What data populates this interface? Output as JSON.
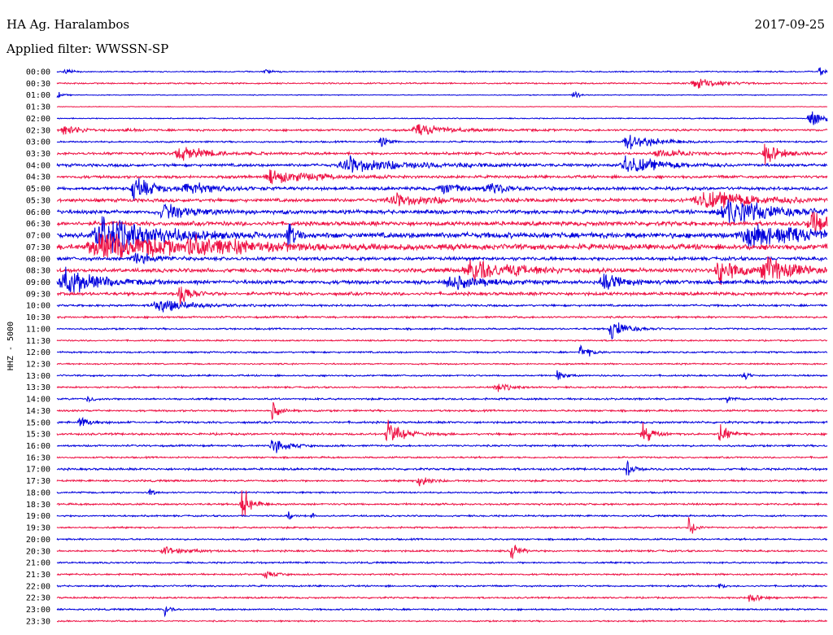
{
  "header": {
    "station": "HA Ag. Haralambos",
    "date": "2017-09-25",
    "filter_text": "Applied filter: WWSSN-SP"
  },
  "chart_data": {
    "type": "line",
    "ylabel": "HHZ - 5000",
    "colors": [
      "#0000dd",
      "#ee1144"
    ],
    "row_labels": [
      "00:00",
      "00:30",
      "01:00",
      "01:30",
      "02:00",
      "02:30",
      "03:00",
      "03:30",
      "04:00",
      "04:30",
      "05:00",
      "05:30",
      "06:00",
      "06:30",
      "07:00",
      "07:30",
      "08:00",
      "08:30",
      "09:00",
      "09:30",
      "10:00",
      "10:30",
      "11:00",
      "11:30",
      "12:00",
      "12:30",
      "13:00",
      "13:30",
      "14:00",
      "14:30",
      "15:00",
      "15:30",
      "16:00",
      "16:30",
      "17:00",
      "17:30",
      "18:00",
      "18:30",
      "19:00",
      "19:30",
      "20:00",
      "20:30",
      "21:00",
      "21:30",
      "22:00",
      "22:30",
      "23:00",
      "23:30"
    ],
    "grid": false,
    "noise_level": [
      0.6,
      0.7,
      0.4,
      0.3,
      0.5,
      1.0,
      0.8,
      1.2,
      1.4,
      1.3,
      1.5,
      1.6,
      1.8,
      2.0,
      2.6,
      2.6,
      1.6,
      1.8,
      1.8,
      1.5,
      1.0,
      0.9,
      0.8,
      0.7,
      0.8,
      0.7,
      0.8,
      0.8,
      0.9,
      0.9,
      1.0,
      1.0,
      0.9,
      0.8,
      1.0,
      0.9,
      0.8,
      0.9,
      0.8,
      0.8,
      0.8,
      0.9,
      0.8,
      0.8,
      0.8,
      0.8,
      0.8,
      0.7
    ],
    "events": [
      {
        "row": 0,
        "x": 0.01,
        "amp": 4,
        "width": 0.006
      },
      {
        "row": 0,
        "x": 0.27,
        "amp": 3,
        "width": 0.006
      },
      {
        "row": 0,
        "x": 0.99,
        "amp": 5,
        "width": 0.008
      },
      {
        "row": 1,
        "x": 0.83,
        "amp": 5,
        "width": 0.025
      },
      {
        "row": 2,
        "x": 0.0,
        "amp": 5,
        "width": 0.004
      },
      {
        "row": 2,
        "x": 0.67,
        "amp": 5,
        "width": 0.005
      },
      {
        "row": 4,
        "x": 0.98,
        "amp": 8,
        "width": 0.02
      },
      {
        "row": 5,
        "x": 0.01,
        "amp": 7,
        "width": 0.015
      },
      {
        "row": 5,
        "x": 0.09,
        "amp": 5,
        "width": 0.005
      },
      {
        "row": 5,
        "x": 0.47,
        "amp": 6,
        "width": 0.03
      },
      {
        "row": 6,
        "x": 0.42,
        "amp": 9,
        "width": 0.006
      },
      {
        "row": 6,
        "x": 0.74,
        "amp": 8,
        "width": 0.03
      },
      {
        "row": 7,
        "x": 0.16,
        "amp": 7,
        "width": 0.03
      },
      {
        "row": 7,
        "x": 0.78,
        "amp": 5,
        "width": 0.02
      },
      {
        "row": 7,
        "x": 0.92,
        "amp": 11,
        "width": 0.015
      },
      {
        "row": 8,
        "x": 0.38,
        "amp": 8,
        "width": 0.06
      },
      {
        "row": 8,
        "x": 0.74,
        "amp": 10,
        "width": 0.03
      },
      {
        "row": 9,
        "x": 0.28,
        "amp": 7,
        "width": 0.04
      },
      {
        "row": 10,
        "x": 0.1,
        "amp": 12,
        "width": 0.02
      },
      {
        "row": 10,
        "x": 0.17,
        "amp": 7,
        "width": 0.025
      },
      {
        "row": 10,
        "x": 0.5,
        "amp": 7,
        "width": 0.02
      },
      {
        "row": 10,
        "x": 0.56,
        "amp": 6,
        "width": 0.02
      },
      {
        "row": 11,
        "x": 0.44,
        "amp": 6,
        "width": 0.05
      },
      {
        "row": 11,
        "x": 0.84,
        "amp": 9,
        "width": 0.06
      },
      {
        "row": 12,
        "x": 0.14,
        "amp": 8,
        "width": 0.03
      },
      {
        "row": 12,
        "x": 0.87,
        "amp": 14,
        "width": 0.05
      },
      {
        "row": 13,
        "x": 0.98,
        "amp": 14,
        "width": 0.02
      },
      {
        "row": 14,
        "x": 0.06,
        "amp": 20,
        "width": 0.05
      },
      {
        "row": 14,
        "x": 0.3,
        "amp": 16,
        "width": 0.005
      },
      {
        "row": 14,
        "x": 0.9,
        "amp": 12,
        "width": 0.06
      },
      {
        "row": 15,
        "x": 0.06,
        "amp": 14,
        "width": 0.08
      },
      {
        "row": 15,
        "x": 0.18,
        "amp": 9,
        "width": 0.05
      },
      {
        "row": 16,
        "x": 0.1,
        "amp": 8,
        "width": 0.02
      },
      {
        "row": 17,
        "x": 0.54,
        "amp": 11,
        "width": 0.05
      },
      {
        "row": 17,
        "x": 0.86,
        "amp": 14,
        "width": 0.02
      },
      {
        "row": 17,
        "x": 0.92,
        "amp": 13,
        "width": 0.03
      },
      {
        "row": 18,
        "x": 0.01,
        "amp": 16,
        "width": 0.03
      },
      {
        "row": 18,
        "x": 0.51,
        "amp": 8,
        "width": 0.03
      },
      {
        "row": 18,
        "x": 0.71,
        "amp": 8,
        "width": 0.02
      },
      {
        "row": 19,
        "x": 0.16,
        "amp": 14,
        "width": 0.01
      },
      {
        "row": 20,
        "x": 0.13,
        "amp": 8,
        "width": 0.03
      },
      {
        "row": 22,
        "x": 0.72,
        "amp": 12,
        "width": 0.015
      },
      {
        "row": 24,
        "x": 0.68,
        "amp": 9,
        "width": 0.008
      },
      {
        "row": 26,
        "x": 0.65,
        "amp": 7,
        "width": 0.006
      },
      {
        "row": 26,
        "x": 0.89,
        "amp": 9,
        "width": 0.004
      },
      {
        "row": 27,
        "x": 0.57,
        "amp": 5,
        "width": 0.012
      },
      {
        "row": 28,
        "x": 0.04,
        "amp": 5,
        "width": 0.005
      },
      {
        "row": 28,
        "x": 0.87,
        "amp": 5,
        "width": 0.005
      },
      {
        "row": 29,
        "x": 0.28,
        "amp": 11,
        "width": 0.006
      },
      {
        "row": 30,
        "x": 0.03,
        "amp": 5,
        "width": 0.012
      },
      {
        "row": 31,
        "x": 0.43,
        "amp": 13,
        "width": 0.015
      },
      {
        "row": 31,
        "x": 0.76,
        "amp": 15,
        "width": 0.008
      },
      {
        "row": 31,
        "x": 0.86,
        "amp": 12,
        "width": 0.008
      },
      {
        "row": 32,
        "x": 0.28,
        "amp": 10,
        "width": 0.012
      },
      {
        "row": 34,
        "x": 0.74,
        "amp": 9,
        "width": 0.006
      },
      {
        "row": 35,
        "x": 0.47,
        "amp": 7,
        "width": 0.01
      },
      {
        "row": 36,
        "x": 0.12,
        "amp": 5,
        "width": 0.004
      },
      {
        "row": 37,
        "x": 0.24,
        "amp": 22,
        "width": 0.008
      },
      {
        "row": 38,
        "x": 0.3,
        "amp": 6,
        "width": 0.003
      },
      {
        "row": 38,
        "x": 0.33,
        "amp": 5,
        "width": 0.003
      },
      {
        "row": 39,
        "x": 0.82,
        "amp": 11,
        "width": 0.006
      },
      {
        "row": 41,
        "x": 0.59,
        "amp": 12,
        "width": 0.006
      },
      {
        "row": 41,
        "x": 0.14,
        "amp": 4,
        "width": 0.02
      },
      {
        "row": 43,
        "x": 0.27,
        "amp": 4,
        "width": 0.01
      },
      {
        "row": 44,
        "x": 0.86,
        "amp": 4,
        "width": 0.004
      },
      {
        "row": 45,
        "x": 0.9,
        "amp": 5,
        "width": 0.01
      },
      {
        "row": 46,
        "x": 0.14,
        "amp": 7,
        "width": 0.004
      }
    ]
  }
}
